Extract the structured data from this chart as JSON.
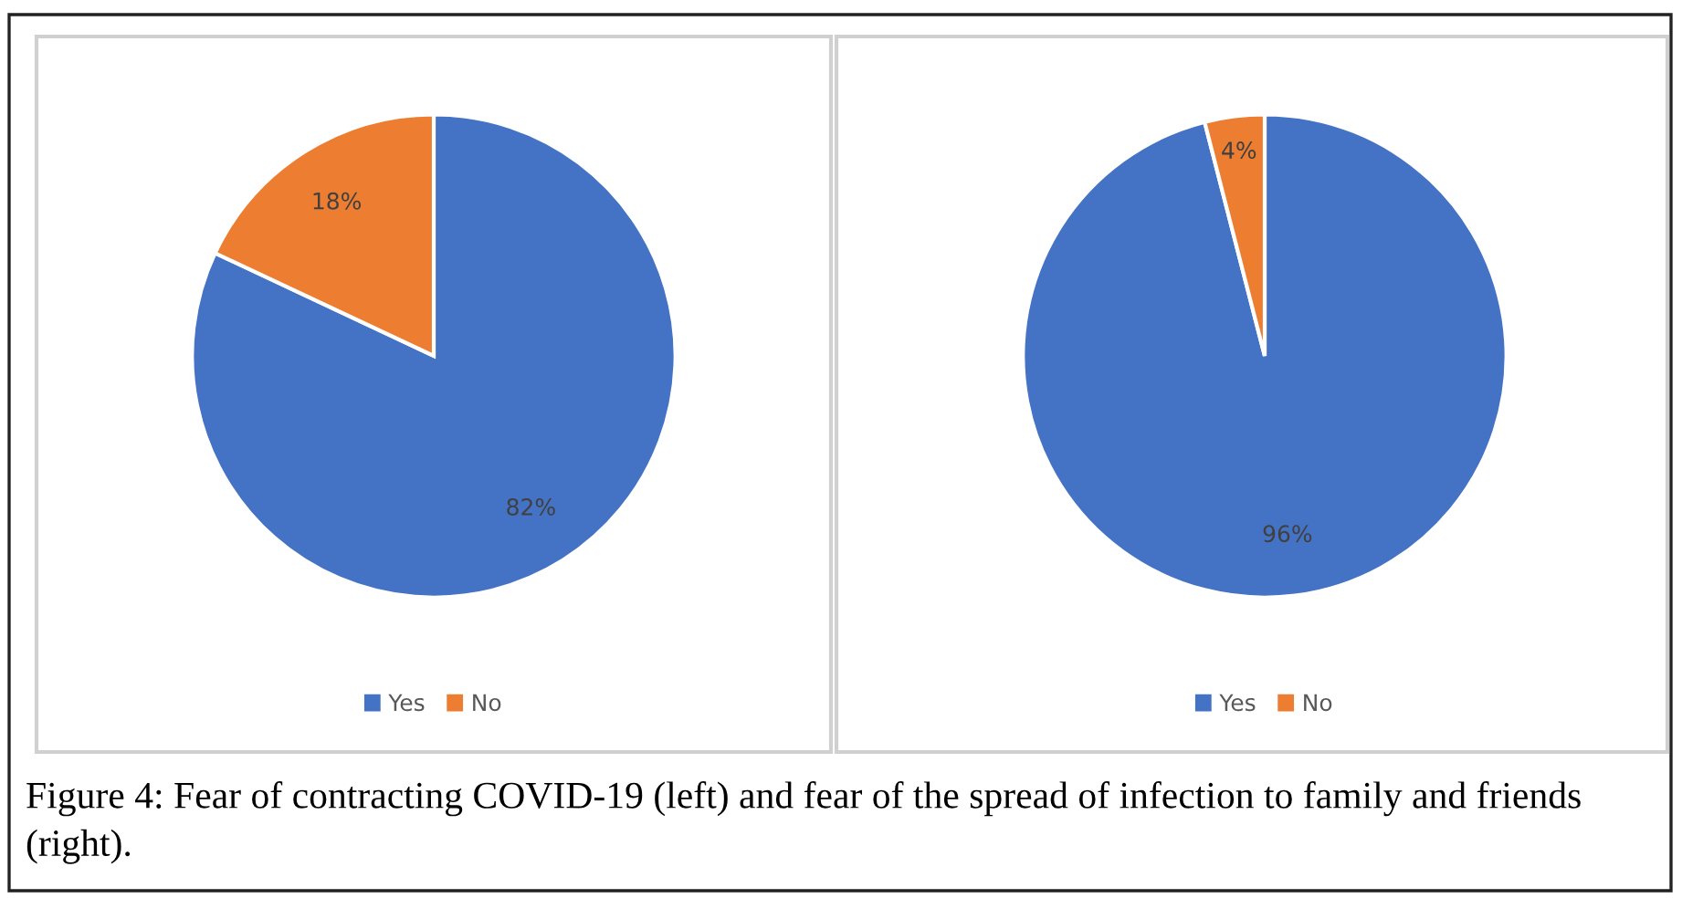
{
  "chart_data": [
    {
      "type": "pie",
      "categories": [
        "Yes",
        "No"
      ],
      "values": [
        82,
        18
      ],
      "colors": [
        "#4472c4",
        "#ed7d31"
      ],
      "value_labels": [
        "82%",
        "18%"
      ],
      "legend": "bottom",
      "annotations": [
        "Figure 4: Fear of contracting COVID-19 (left) and fear of the spread of infection to family and friends (right)."
      ]
    },
    {
      "type": "pie",
      "categories": [
        "Yes",
        "No"
      ],
      "values": [
        96,
        4
      ],
      "colors": [
        "#4472c4",
        "#ed7d31"
      ],
      "value_labels": [
        "96%",
        "4%"
      ],
      "legend": "bottom"
    }
  ]
}
